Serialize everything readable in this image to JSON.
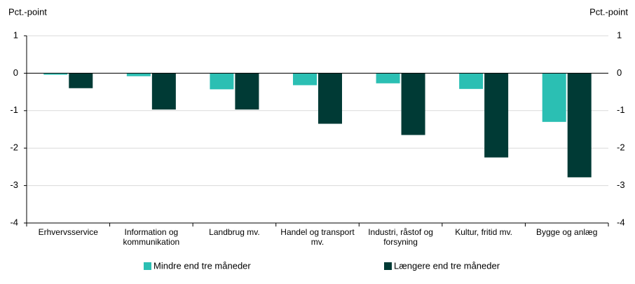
{
  "chart_data": {
    "type": "bar",
    "y_label": "Pct.-point",
    "y2_label": "Pct.-point",
    "categories": [
      "Erhvervsservice",
      "Information og kommunikation",
      "Landbrug mv.",
      "Handel og transport mv.",
      "Industri, råstof og forsyning",
      "Kultur, fritid mv.",
      "Bygge og anlæg"
    ],
    "series": [
      {
        "name": "Mindre end tre måneder",
        "color": "#2bbfb3",
        "values": [
          -0.04,
          -0.08,
          -0.43,
          -0.32,
          -0.27,
          -0.42,
          -1.3
        ]
      },
      {
        "name": "Længere end tre måneder",
        "color": "#003a35",
        "values": [
          -0.4,
          -0.97,
          -0.97,
          -1.35,
          -1.65,
          -2.25,
          -2.78
        ]
      }
    ],
    "ylim": [
      -4,
      1
    ],
    "yticks": [
      1,
      0,
      -1,
      -2,
      -3,
      -4
    ],
    "y2lim": [
      -4,
      1
    ],
    "y2ticks": [
      1,
      0,
      -1,
      -2,
      -3,
      -4
    ],
    "grid": true,
    "legend": "bottom"
  }
}
